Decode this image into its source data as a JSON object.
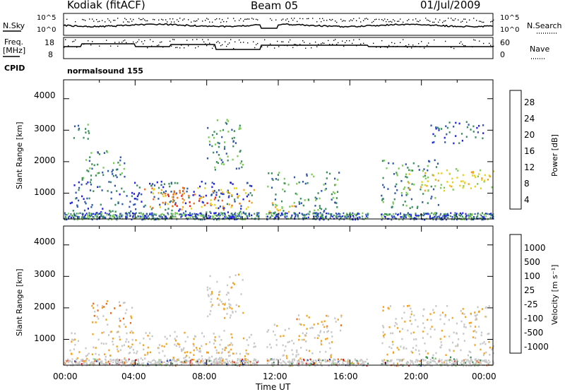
{
  "header": {
    "title": "Kodiak (fitACF)",
    "beam": "Beam 05",
    "date": "01/Jul/2009"
  },
  "params": {
    "nsky_label": "N.Sky",
    "nsky_ticks": [
      "10^5",
      "10^0"
    ],
    "nsearch_label": "N.Search",
    "nsearch_ticks": [
      "10^5",
      "10^0"
    ],
    "freq_label_1": "Freq.",
    "freq_label_2": "[MHz]",
    "freq_ticks": [
      "18",
      "8"
    ],
    "nave_label": "Nave",
    "nave_ticks": [
      "60",
      "0"
    ],
    "cpid_label": "CPID",
    "cpid_value": "normalsound 155"
  },
  "colors": {
    "power": [
      "#1f1fe6",
      "#2f57b0",
      "#3a8f5a",
      "#7acc55",
      "#e8d21a",
      "#f5a21c",
      "#ef6a14",
      "#e8201a"
    ],
    "velocity": [
      "#e8201a",
      "#f06a10",
      "#f5a21c",
      "#c8c8c8",
      "#c8c8c8",
      "#7acc55",
      "#3a8f5a",
      "#1f3fb0"
    ],
    "ground": "#c8c8c8"
  },
  "chart_data": [
    {
      "type": "heatmap",
      "title": "Power",
      "ylabel": "Slant Range [km]",
      "colorbar_label": "Power [dB]",
      "colorbar_ticks": [
        "28",
        "24",
        "20",
        "16",
        "12",
        "8",
        "4"
      ],
      "yticks": [
        "4000",
        "3000",
        "2000",
        "1000"
      ],
      "xlim": [
        0,
        24
      ],
      "ylim": [
        180,
        4600
      ],
      "data_gaps_hours": [
        [
          10.9,
          11.3
        ],
        [
          17.0,
          17.7
        ]
      ],
      "regions": [
        {
          "t": [
            0.5,
            1.4
          ],
          "r": [
            2700,
            3300
          ],
          "level": 2
        },
        {
          "t": [
            1.0,
            3.4
          ],
          "r": [
            1400,
            2400
          ],
          "level": 2
        },
        {
          "t": [
            0.3,
            10.5
          ],
          "r": [
            250,
            1400
          ],
          "level": 1
        },
        {
          "t": [
            4.5,
            10.7
          ],
          "r": [
            500,
            1200
          ],
          "level": 5
        },
        {
          "t": [
            5.5,
            8.5
          ],
          "r": [
            600,
            1000
          ],
          "level": 7
        },
        {
          "t": [
            8.0,
            10.0
          ],
          "r": [
            1700,
            3400
          ],
          "level": 2
        },
        {
          "t": [
            11.3,
            15.4
          ],
          "r": [
            400,
            1700
          ],
          "level": 2
        },
        {
          "t": [
            11.3,
            13.0
          ],
          "r": [
            350,
            750
          ],
          "level": 5
        },
        {
          "t": [
            17.7,
            21.0
          ],
          "r": [
            500,
            2100
          ],
          "level": 2
        },
        {
          "t": [
            19.2,
            24.0
          ],
          "r": [
            1100,
            1800
          ],
          "level": 4
        },
        {
          "t": [
            20.5,
            23.5
          ],
          "r": [
            2600,
            3300
          ],
          "level": 1
        }
      ]
    },
    {
      "type": "heatmap",
      "title": "Velocity",
      "ylabel": "Slant Range [km]",
      "xlabel": "Time UT",
      "colorbar_label": "Velocity [m s⁻¹]",
      "colorbar_ticks": [
        "1000",
        "500",
        "100",
        "25",
        "-25",
        "-100",
        "-500",
        "-1000"
      ],
      "yticks": [
        "4000",
        "3000",
        "2000",
        "1000"
      ],
      "xticks": [
        "00:00",
        "04:00",
        "08:00",
        "12:00",
        "16:00",
        "20:00",
        "00:00"
      ],
      "xlim": [
        0,
        24
      ],
      "ylim": [
        180,
        4600
      ],
      "data_gaps_hours": [
        [
          10.9,
          11.3
        ],
        [
          17.0,
          17.7
        ]
      ],
      "regions": [
        {
          "t": [
            0.3,
            10.7
          ],
          "r": [
            250,
            1300
          ],
          "level": 3
        },
        {
          "t": [
            1.5,
            3.8
          ],
          "r": [
            1400,
            2300
          ],
          "level": 2
        },
        {
          "t": [
            6.0,
            9.5
          ],
          "r": [
            300,
            900
          ],
          "level": 3
        },
        {
          "t": [
            8.0,
            10.0
          ],
          "r": [
            1700,
            3200
          ],
          "level": 3
        },
        {
          "t": [
            13.0,
            15.5
          ],
          "r": [
            1300,
            1800
          ],
          "level": 2
        },
        {
          "t": [
            11.3,
            15.0
          ],
          "r": [
            300,
            1500
          ],
          "level": 3
        },
        {
          "t": [
            17.7,
            24.0
          ],
          "r": [
            500,
            2100
          ],
          "level": 3
        },
        {
          "t": [
            20.0,
            23.0
          ],
          "r": [
            200,
            500
          ],
          "level": 5
        }
      ]
    }
  ]
}
